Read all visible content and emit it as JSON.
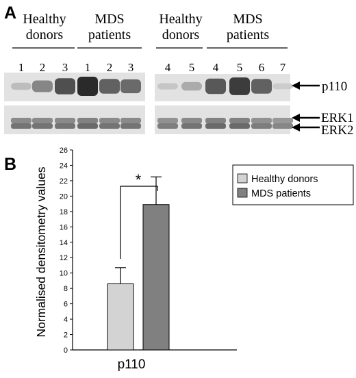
{
  "panel_a": {
    "label": "A",
    "left_block": {
      "groups": [
        {
          "line1": "Healthy",
          "line2": "donors"
        },
        {
          "line1": "MDS",
          "line2": "patients"
        }
      ],
      "lanes": [
        "1",
        "2",
        "3",
        "1",
        "2",
        "3"
      ],
      "p110_intensity": [
        0.2,
        0.5,
        0.8,
        1.0,
        0.7,
        0.65
      ],
      "erk_intensity": [
        0.6,
        0.6,
        0.6,
        0.65,
        0.6,
        0.6
      ]
    },
    "right_block": {
      "groups": [
        {
          "line1": "Healthy",
          "line2": "donors"
        },
        {
          "line1": "MDS",
          "line2": "patients"
        }
      ],
      "lanes": [
        "4",
        "5",
        "4",
        "5",
        "6",
        "7"
      ],
      "p110_intensity": [
        0.15,
        0.3,
        0.75,
        0.9,
        0.7,
        0.12
      ],
      "erk_intensity": [
        0.55,
        0.6,
        0.65,
        0.65,
        0.55,
        0.5
      ]
    },
    "markers": {
      "p110": "p110",
      "erk1": "ERK1",
      "erk2": "ERK2"
    },
    "colors": {
      "membrane": "#e2e2e2",
      "band": "#2a2a2a"
    }
  },
  "panel_b": {
    "label": "B",
    "significance": "*"
  },
  "chart_data": {
    "type": "bar",
    "title": "",
    "xlabel": "p110",
    "ylabel": "Normalised densitometry values",
    "ylim": [
      0,
      26
    ],
    "yticks": [
      "0",
      "2",
      "4",
      "6",
      "8",
      "10",
      "12",
      "14",
      "16",
      "18",
      "20",
      "22",
      "24",
      "26"
    ],
    "categories": [
      "p110"
    ],
    "series": [
      {
        "name": "Healthy donors",
        "values": [
          8.6
        ],
        "error": [
          2.1
        ],
        "color": "#d3d3d3"
      },
      {
        "name": "MDS patients",
        "values": [
          18.9
        ],
        "error": [
          3.6
        ],
        "color": "#808080"
      }
    ],
    "legend_position": "top-right"
  }
}
